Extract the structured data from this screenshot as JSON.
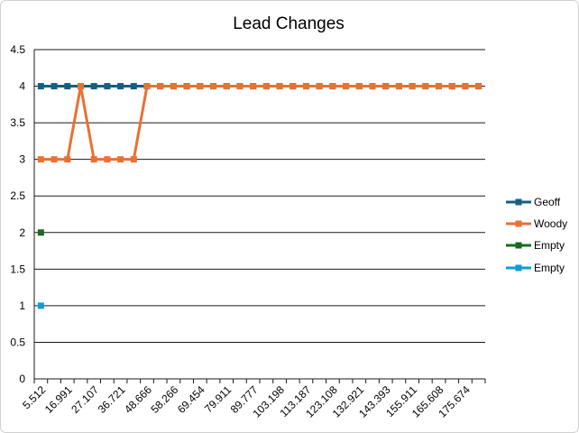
{
  "chart_data": {
    "type": "line",
    "title": "Lead Changes",
    "categories": [
      "5.512",
      null,
      "16.991",
      null,
      "27.107",
      null,
      "36.721",
      null,
      "48.666",
      null,
      "58.266",
      null,
      "69.454",
      null,
      "79.911",
      null,
      "89.777",
      null,
      "103.198",
      null,
      "113.187",
      null,
      "123.108",
      null,
      "132.921",
      null,
      "143.393",
      null,
      "155.911",
      null,
      "165.608",
      null,
      "175.674",
      null
    ],
    "series": [
      {
        "name": "Geoff",
        "color": "#156082",
        "values": [
          4,
          4,
          4,
          4,
          4,
          4,
          4,
          4,
          4,
          4,
          4,
          4,
          4,
          4,
          4,
          4,
          4,
          4,
          4,
          4,
          4,
          4,
          4,
          4,
          4,
          4,
          4,
          4,
          4,
          4,
          4,
          4,
          4,
          4
        ]
      },
      {
        "name": "Woody",
        "color": "#e97132",
        "values": [
          3,
          3,
          3,
          4,
          3,
          3,
          3,
          3,
          4,
          4,
          4,
          4,
          4,
          4,
          4,
          4,
          4,
          4,
          4,
          4,
          4,
          4,
          4,
          4,
          4,
          4,
          4,
          4,
          4,
          4,
          4,
          4,
          4,
          4
        ]
      },
      {
        "name": "Empty",
        "color": "#196b24",
        "values": [
          2,
          null,
          null,
          null,
          null,
          null,
          null,
          null,
          null,
          null,
          null,
          null,
          null,
          null,
          null,
          null,
          null,
          null,
          null,
          null,
          null,
          null,
          null,
          null,
          null,
          null,
          null,
          null,
          null,
          null,
          null,
          null,
          null,
          null
        ]
      },
      {
        "name": "Empty",
        "color": "#0f9ed5",
        "values": [
          1,
          null,
          null,
          null,
          null,
          null,
          null,
          null,
          null,
          null,
          null,
          null,
          null,
          null,
          null,
          null,
          null,
          null,
          null,
          null,
          null,
          null,
          null,
          null,
          null,
          null,
          null,
          null,
          null,
          null,
          null,
          null,
          null,
          null
        ]
      }
    ],
    "ylim": [
      0,
      4.5
    ],
    "yticks": [
      0,
      0.5,
      1,
      1.5,
      2,
      2.5,
      3,
      3.5,
      4,
      4.5
    ],
    "grid": true,
    "legend": "right"
  }
}
